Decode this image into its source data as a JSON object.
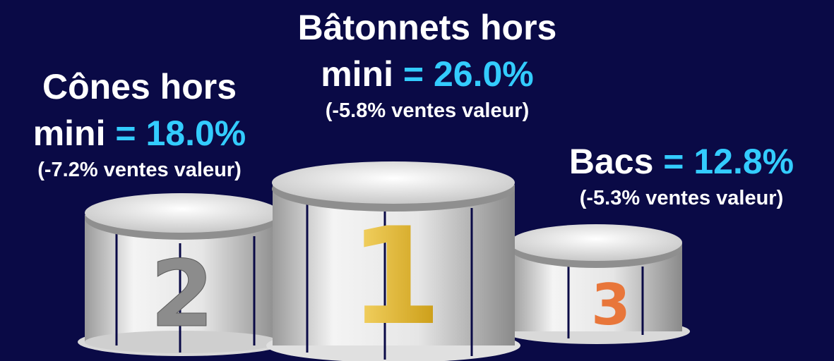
{
  "podium": [
    {
      "rank": "1",
      "label_lines": [
        "Bâtonnets hors",
        "mini"
      ],
      "value": "= 26.0%",
      "detail": "(-5.8% ventes valeur)"
    },
    {
      "rank": "2",
      "label_lines": [
        "Cônes hors",
        "mini"
      ],
      "value": "= 18.0%",
      "detail": "(-7.2% ventes valeur)"
    },
    {
      "rank": "3",
      "label_lines": [
        "Bacs"
      ],
      "value": "= 12.8%",
      "detail": "(-5.3% ventes valeur)"
    }
  ]
}
